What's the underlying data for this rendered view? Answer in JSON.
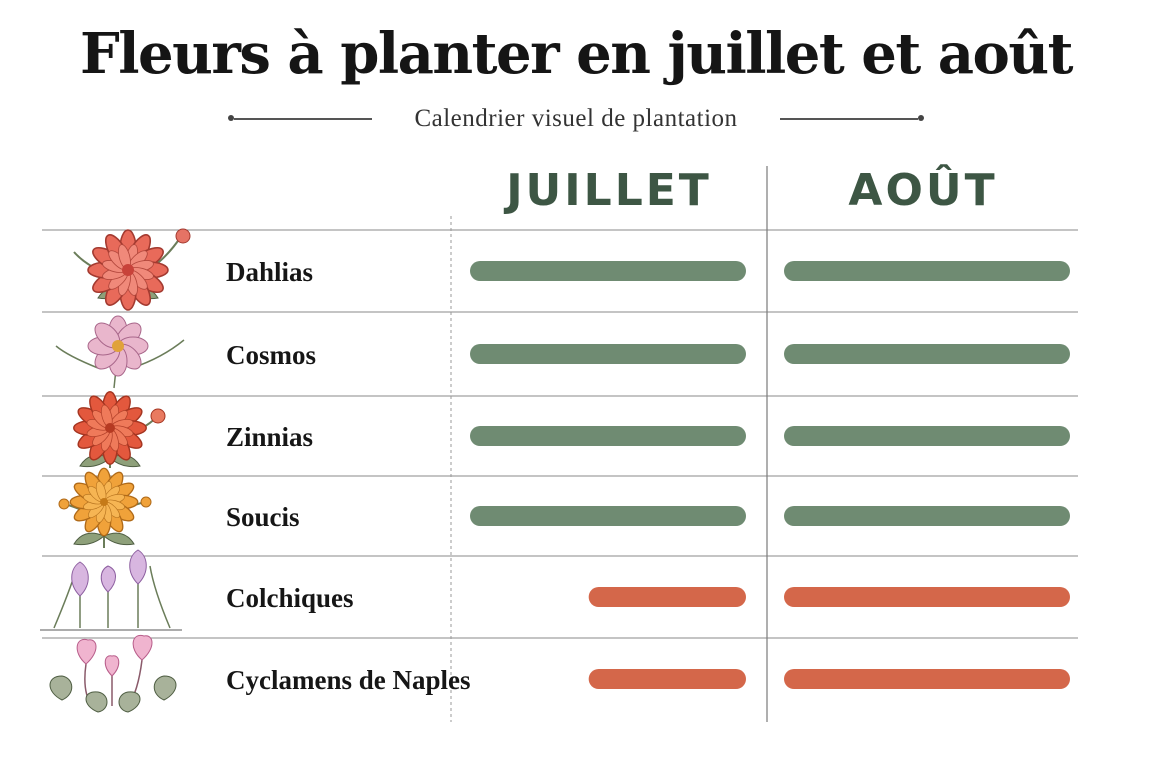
{
  "header": {
    "title": "Fleurs à planter en juillet et août",
    "subtitle": "Calendrier visuel de plantation"
  },
  "chart_data": {
    "type": "gantt",
    "columns": [
      "JUILLET",
      "AOÛT"
    ],
    "rows": [
      {
        "label": "Dahlias",
        "illustration": "dahlia-icon",
        "color": "#6f8b72",
        "segments": [
          {
            "column": "JUILLET",
            "start": 0.0,
            "end": 1.0
          },
          {
            "column": "AOÛT",
            "start": 0.0,
            "end": 1.0
          }
        ]
      },
      {
        "label": "Cosmos",
        "illustration": "cosmos-icon",
        "color": "#6f8b72",
        "segments": [
          {
            "column": "JUILLET",
            "start": 0.0,
            "end": 1.0
          },
          {
            "column": "AOÛT",
            "start": 0.0,
            "end": 1.0
          }
        ]
      },
      {
        "label": "Zinnias",
        "illustration": "zinnia-icon",
        "color": "#6f8b72",
        "segments": [
          {
            "column": "JUILLET",
            "start": 0.0,
            "end": 1.0
          },
          {
            "column": "AOÛT",
            "start": 0.0,
            "end": 1.0
          }
        ]
      },
      {
        "label": "Soucis",
        "illustration": "marigold-icon",
        "color": "#6f8b72",
        "segments": [
          {
            "column": "JUILLET",
            "start": 0.0,
            "end": 1.0
          },
          {
            "column": "AOÛT",
            "start": 0.0,
            "end": 1.0
          }
        ]
      },
      {
        "label": "Colchiques",
        "illustration": "colchicum-icon",
        "color": "#d4674a",
        "segments": [
          {
            "column": "JUILLET",
            "start": 0.43,
            "end": 1.0
          },
          {
            "column": "AOÛT",
            "start": 0.0,
            "end": 1.0
          }
        ]
      },
      {
        "label": "Cyclamens de Naples",
        "illustration": "cyclamen-icon",
        "color": "#d4674a",
        "segments": [
          {
            "column": "JUILLET",
            "start": 0.43,
            "end": 1.0
          },
          {
            "column": "AOÛT",
            "start": 0.0,
            "end": 1.0
          }
        ]
      }
    ],
    "grid": true,
    "legend": "none"
  }
}
